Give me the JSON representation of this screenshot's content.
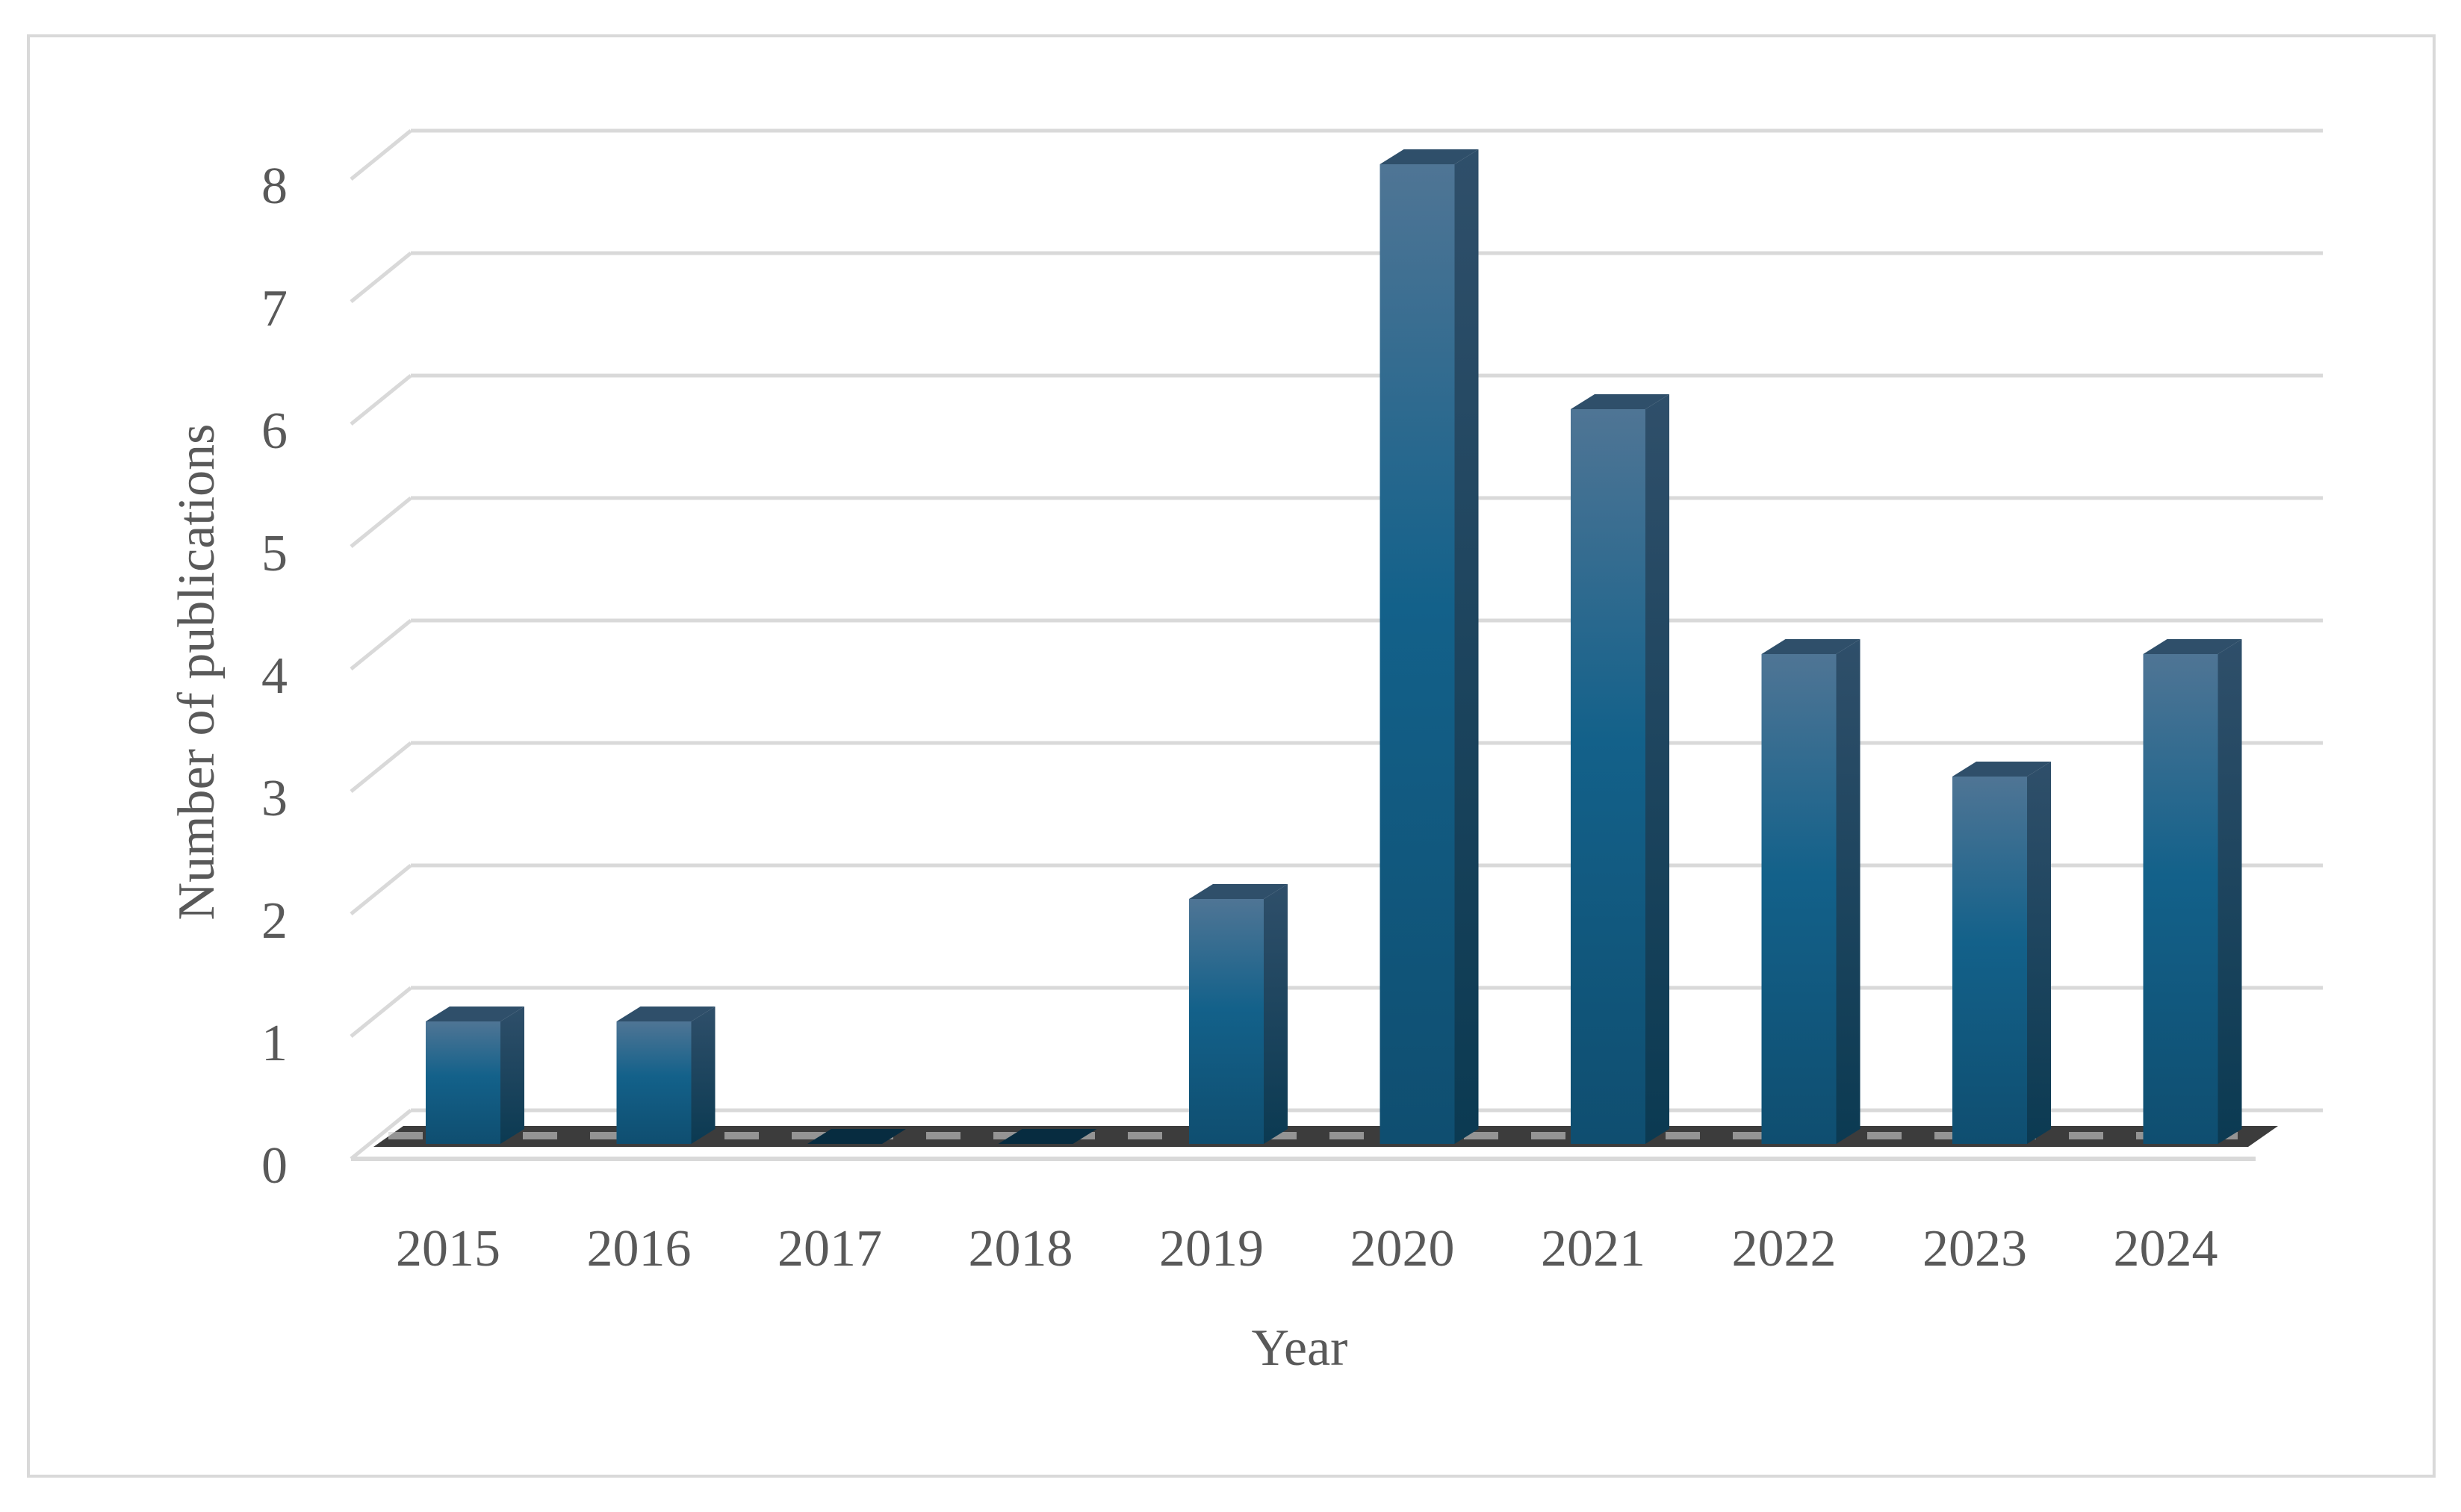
{
  "chart_data": {
    "type": "bar",
    "style": "3d-column",
    "categories": [
      "2015",
      "2016",
      "2017",
      "2018",
      "2019",
      "2020",
      "2021",
      "2022",
      "2023",
      "2024"
    ],
    "values": [
      1,
      1,
      0,
      0,
      2,
      8,
      6,
      4,
      3,
      4
    ],
    "yticks": [
      "0",
      "1",
      "2",
      "3",
      "4",
      "5",
      "6",
      "7",
      "8"
    ],
    "title": "",
    "xlabel": "Year",
    "ylabel": "Number of publications",
    "ylim": [
      0,
      8
    ],
    "grid": true,
    "legend": "none",
    "colors": {
      "bar_top": "#4f7595",
      "bar_front": "#13618a",
      "bar_front_dark": "#0f4e70",
      "bar_side": "#0b3a52",
      "bar_cap": "#2f4f6a",
      "grid": "#d9d9d9",
      "text": "#595959"
    }
  }
}
